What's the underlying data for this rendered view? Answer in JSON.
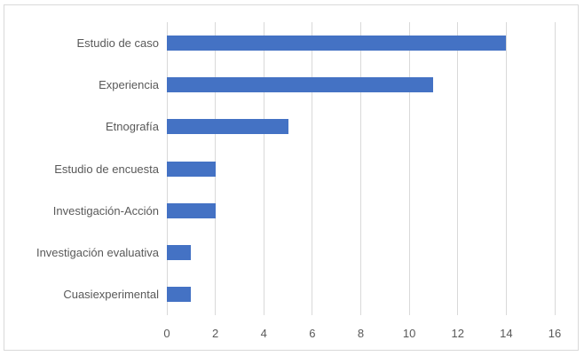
{
  "chart_data": {
    "type": "bar",
    "orientation": "horizontal",
    "title": "",
    "xlabel": "",
    "ylabel": "",
    "categories": [
      "Estudio de caso",
      "Experiencia",
      "Etnografía",
      "Estudio de encuesta",
      "Investigación-Acción",
      "Investigación evaluativa",
      "Cuasiexperimental"
    ],
    "values": [
      14,
      11,
      5,
      2,
      2,
      1,
      1
    ],
    "xlim": [
      0,
      16
    ],
    "xticks": [
      "0",
      "2",
      "4",
      "6",
      "8",
      "10",
      "12",
      "14",
      "16"
    ],
    "grid": true,
    "legend": null,
    "bar_color": "#4472c4",
    "grid_color": "#d9d9d9",
    "label_color": "#595959"
  }
}
